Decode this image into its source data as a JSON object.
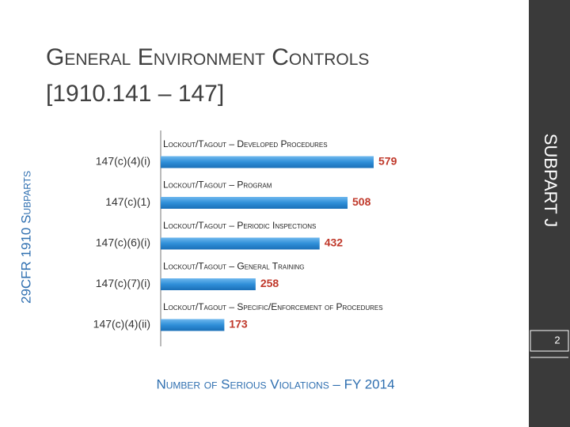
{
  "chart_data": {
    "type": "bar",
    "orientation": "horizontal",
    "title": "General Environment Controls",
    "subtitle": "[1910.141 – 147]",
    "side_label": "SUBPART J",
    "y_label": "29CFR 1910 Subparts",
    "x_label": "Number of Serious Violations – FY 2014",
    "page_number": "2",
    "categories": [
      "147(c)(4)(i)",
      "147(c)(1)",
      "147(c)(6)(i)",
      "147(c)(7)(i)",
      "147(c)(4)(ii)"
    ],
    "descriptions": [
      "Lockout/Tagout – Developed Procedures",
      "Lockout/Tagout – Program",
      "Lockout/Tagout – Periodic Inspections",
      "Lockout/Tagout – General Training",
      "Lockout/Tagout – Specific/Enforcement of Procedures"
    ],
    "values": [
      579,
      508,
      432,
      258,
      173
    ],
    "color": "#2f8fd8",
    "value_label_color": "#c0392b"
  }
}
